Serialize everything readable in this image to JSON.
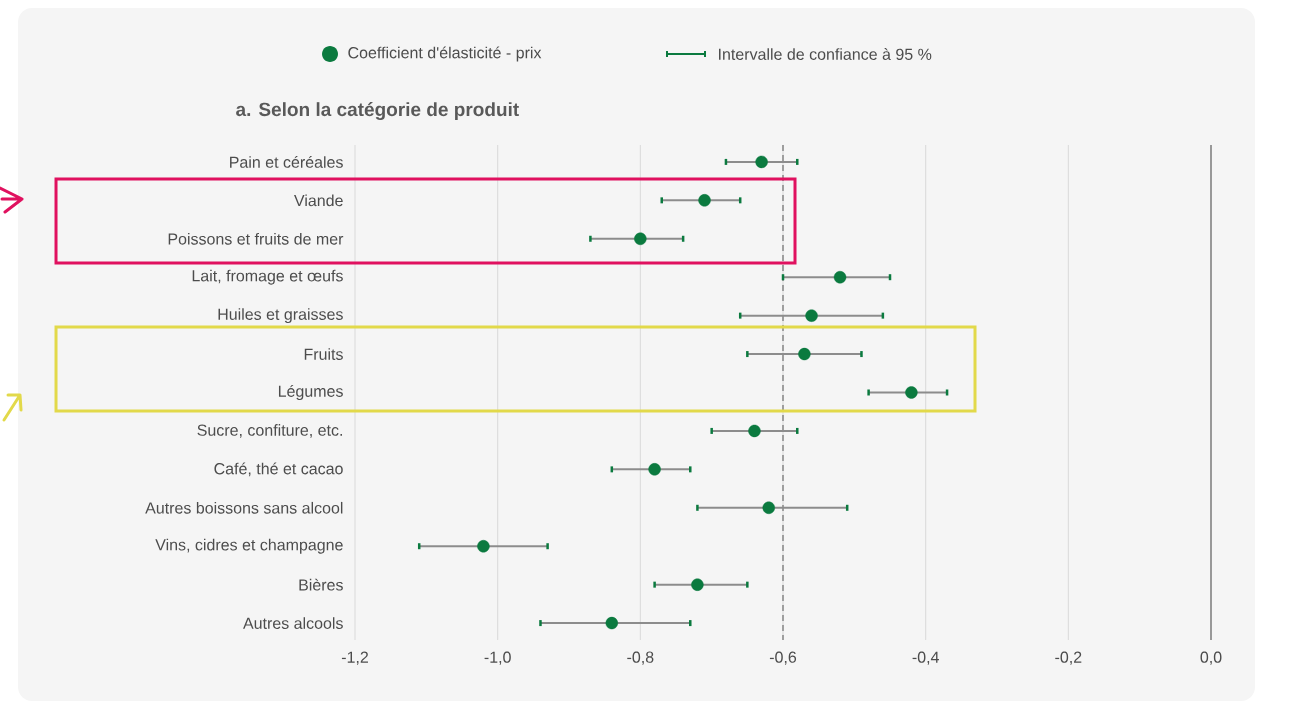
{
  "chart_data": {
    "type": "scatter",
    "orientation": "horizontal",
    "title": "a. Selon la catégorie de produit",
    "categories": [
      "Pain et céréales",
      "Viande",
      "Poissons et fruits de mer",
      "Lait, fromage et œufs",
      "Huiles et graisses",
      "Fruits",
      "Légumes",
      "Sucre, confiture, etc.",
      "Café, thé et cacao",
      "Autres boissons sans alcool",
      "Vins, cidres et champagne",
      "Bières",
      "Autres alcools"
    ],
    "series": [
      {
        "name": "Coefficient d'élasticité - prix",
        "color": "#0b7a3f",
        "values": [
          -0.63,
          -0.71,
          -0.8,
          -0.52,
          -0.56,
          -0.57,
          -0.42,
          -0.64,
          -0.78,
          -0.62,
          -1.02,
          -0.72,
          -0.84
        ],
        "errors": [
          [
            -0.68,
            -0.58
          ],
          [
            -0.77,
            -0.66
          ],
          [
            -0.87,
            -0.74
          ],
          [
            -0.6,
            -0.45
          ],
          [
            -0.66,
            -0.46
          ],
          [
            -0.65,
            -0.49
          ],
          [
            -0.48,
            -0.37
          ],
          [
            -0.7,
            -0.58
          ],
          [
            -0.84,
            -0.73
          ],
          [
            -0.72,
            -0.51
          ],
          [
            -1.11,
            -0.93
          ],
          [
            -0.78,
            -0.65
          ],
          [
            -0.94,
            -0.73
          ]
        ]
      }
    ],
    "annotations": [
      "Intervalle de confiance à 95 %"
    ],
    "xlim": [
      -1.2,
      0
    ],
    "xticks": [
      {
        "value": -1.2,
        "label": "-1,2"
      },
      {
        "value": -1.0,
        "label": "-1,0"
      },
      {
        "value": -0.8,
        "label": "-0,8"
      },
      {
        "value": -0.6,
        "label": "-0,6"
      },
      {
        "value": -0.4,
        "label": "-0,4"
      },
      {
        "value": -0.2,
        "label": "-0,2"
      },
      {
        "value": 0,
        "label": "0,0"
      }
    ],
    "ref_lines": [
      {
        "axis": "x",
        "value": -0.6,
        "line_style": "dashed",
        "color": "#555555"
      }
    ],
    "grid": "x",
    "legend": "top",
    "marker": "circle"
  }
}
